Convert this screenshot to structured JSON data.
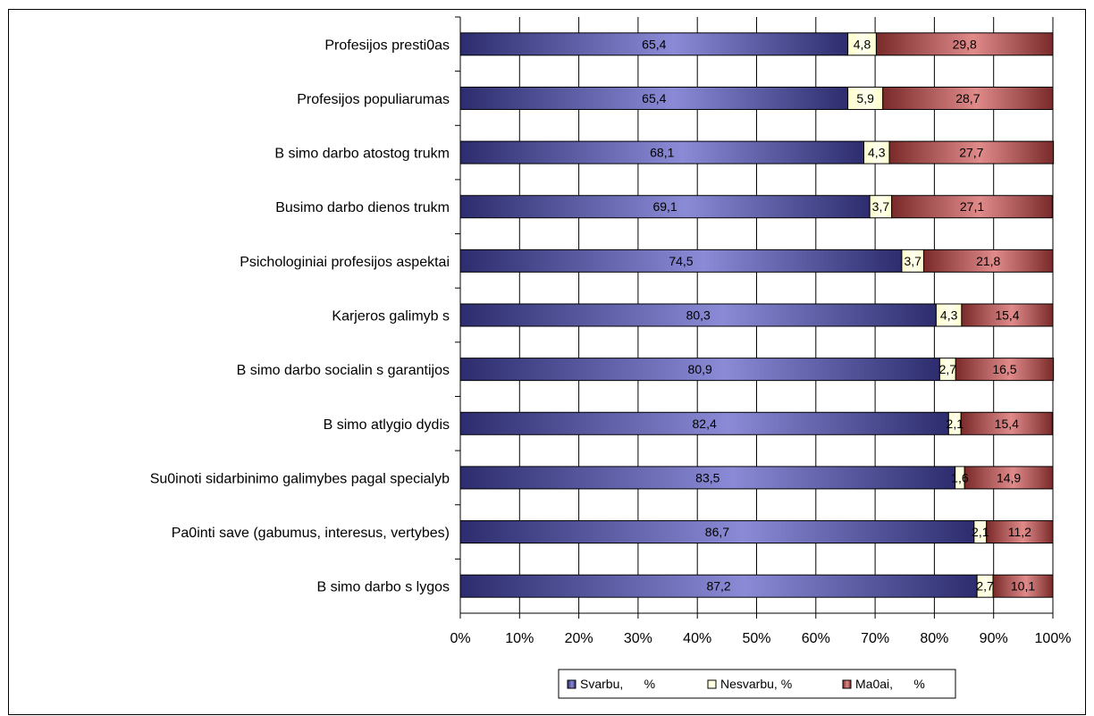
{
  "chart_data": {
    "type": "bar",
    "orientation": "horizontal",
    "stacked": "percent",
    "categories": [
      "Profesijos presti0as",
      "Profesijos populiarumas",
      "B  simo darbo atostog   trukm",
      "Busimo darbo dienos trukm",
      "Psichologiniai profesijos aspektai",
      "Karjeros galimyb  s",
      "B  simo darbo socialin  s garantijos",
      "B  simo atlygio dydis",
      "Su0inoti  sidarbinimo galimybes pagal specialyb",
      "Pa0inti save (gabumus, interesus, vertybes)",
      "B  simo darbo s  lygos"
    ],
    "series": [
      {
        "name": "Svarbu,      %",
        "color": "#4a4aa0",
        "values": [
          65.4,
          65.4,
          68.1,
          69.1,
          74.5,
          80.3,
          80.9,
          82.4,
          83.5,
          86.7,
          87.2
        ],
        "labels": [
          "65,4",
          "65,4",
          "68,1",
          "69,1",
          "74,5",
          "80,3",
          "80,9",
          "82,4",
          "83,5",
          "86,7",
          "87,2"
        ]
      },
      {
        "name": "Nesvarbu, %",
        "color": "#ffffcc",
        "values": [
          4.8,
          5.9,
          4.3,
          3.7,
          3.7,
          4.3,
          2.7,
          2.1,
          1.6,
          2.1,
          2.7
        ],
        "labels": [
          "4,8",
          "5,9",
          "4,3",
          "3,7",
          "3,7",
          "4,3",
          "2,7",
          "2,1",
          "1,6",
          "2,1",
          "2,7"
        ]
      },
      {
        "name": "Ma0ai,      %",
        "color": "#b04a4a",
        "values": [
          29.8,
          28.7,
          27.7,
          27.1,
          21.8,
          15.4,
          16.5,
          15.4,
          14.9,
          11.2,
          10.1
        ],
        "labels": [
          "29,8",
          "28,7",
          "27,7",
          "27,1",
          "21,8",
          "15,4",
          "16,5",
          "15,4",
          "14,9",
          "11,2",
          "10,1"
        ]
      }
    ],
    "x_ticks": [
      "0%",
      "10%",
      "20%",
      "30%",
      "40%",
      "50%",
      "60%",
      "70%",
      "80%",
      "90%",
      "100%"
    ],
    "xlim": [
      0,
      100
    ],
    "grid": true,
    "legend": "bottom"
  }
}
